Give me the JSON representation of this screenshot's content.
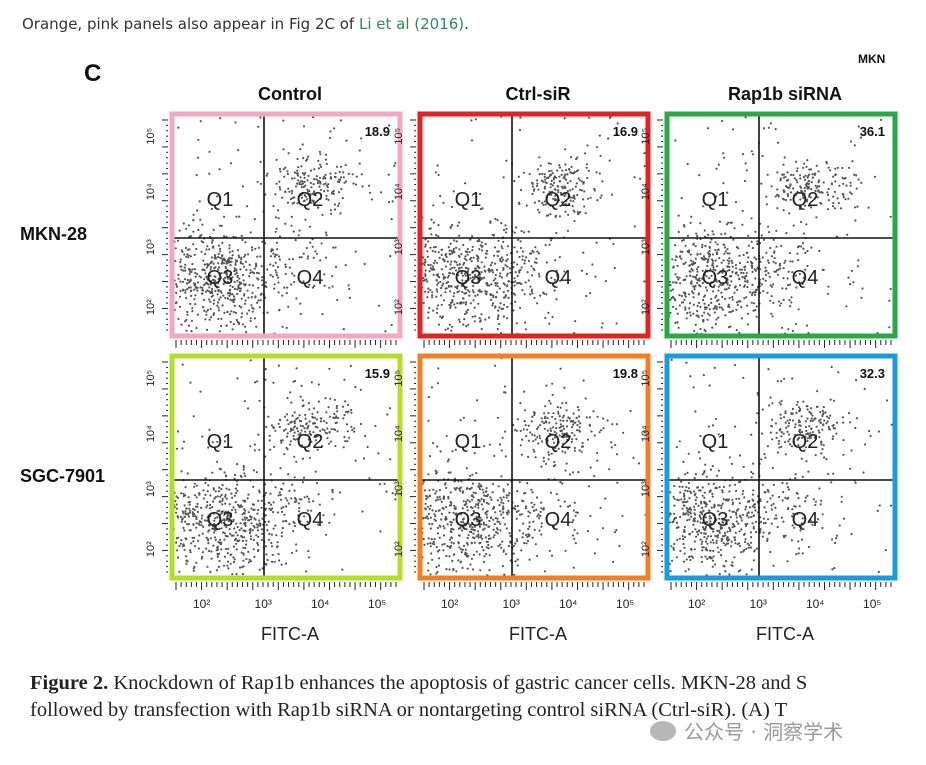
{
  "intro": {
    "text_before": "Orange, pink panels also appear in Fig 2C of ",
    "link": "Li et al (2016)",
    "text_after": "."
  },
  "figure": {
    "panel_label": "C",
    "corner_crop_text": "MKN",
    "columns": [
      "Control",
      "Ctrl-siR",
      "Rap1b siRNA"
    ],
    "rows": [
      "MKN-28",
      "SGC-7901"
    ],
    "x_axis_label": "FITC-A",
    "x_ticks": [
      "10²",
      "10³",
      "10⁴",
      "10⁵"
    ],
    "y_ticks": [
      "10²",
      "10³",
      "10⁴",
      "10⁵"
    ],
    "quadrant_labels": [
      "Q1",
      "Q2",
      "Q3",
      "Q4"
    ],
    "panels": [
      {
        "row": 0,
        "col": 0,
        "value": "18.9",
        "border_color": "#f4a7c3"
      },
      {
        "row": 0,
        "col": 1,
        "value": "16.9",
        "border_color": "#e52222"
      },
      {
        "row": 0,
        "col": 2,
        "value": "36.1",
        "border_color": "#2aa845"
      },
      {
        "row": 1,
        "col": 0,
        "value": "15.9",
        "border_color": "#b4dc2a"
      },
      {
        "row": 1,
        "col": 1,
        "value": "19.8",
        "border_color": "#f57e20"
      },
      {
        "row": 1,
        "col": 2,
        "value": "32.3",
        "border_color": "#1a9be0"
      }
    ]
  },
  "caption": {
    "label": "Figure 2.",
    "line1": "Knockdown of Rap1b enhances the apoptosis of gastric cancer cells. MKN-28 and S",
    "line2": "followed by transfection with Rap1b siRNA or nontargeting control siRNA (Ctrl-siR). (A) T"
  },
  "watermark": "公众号 · 洞察学术"
}
